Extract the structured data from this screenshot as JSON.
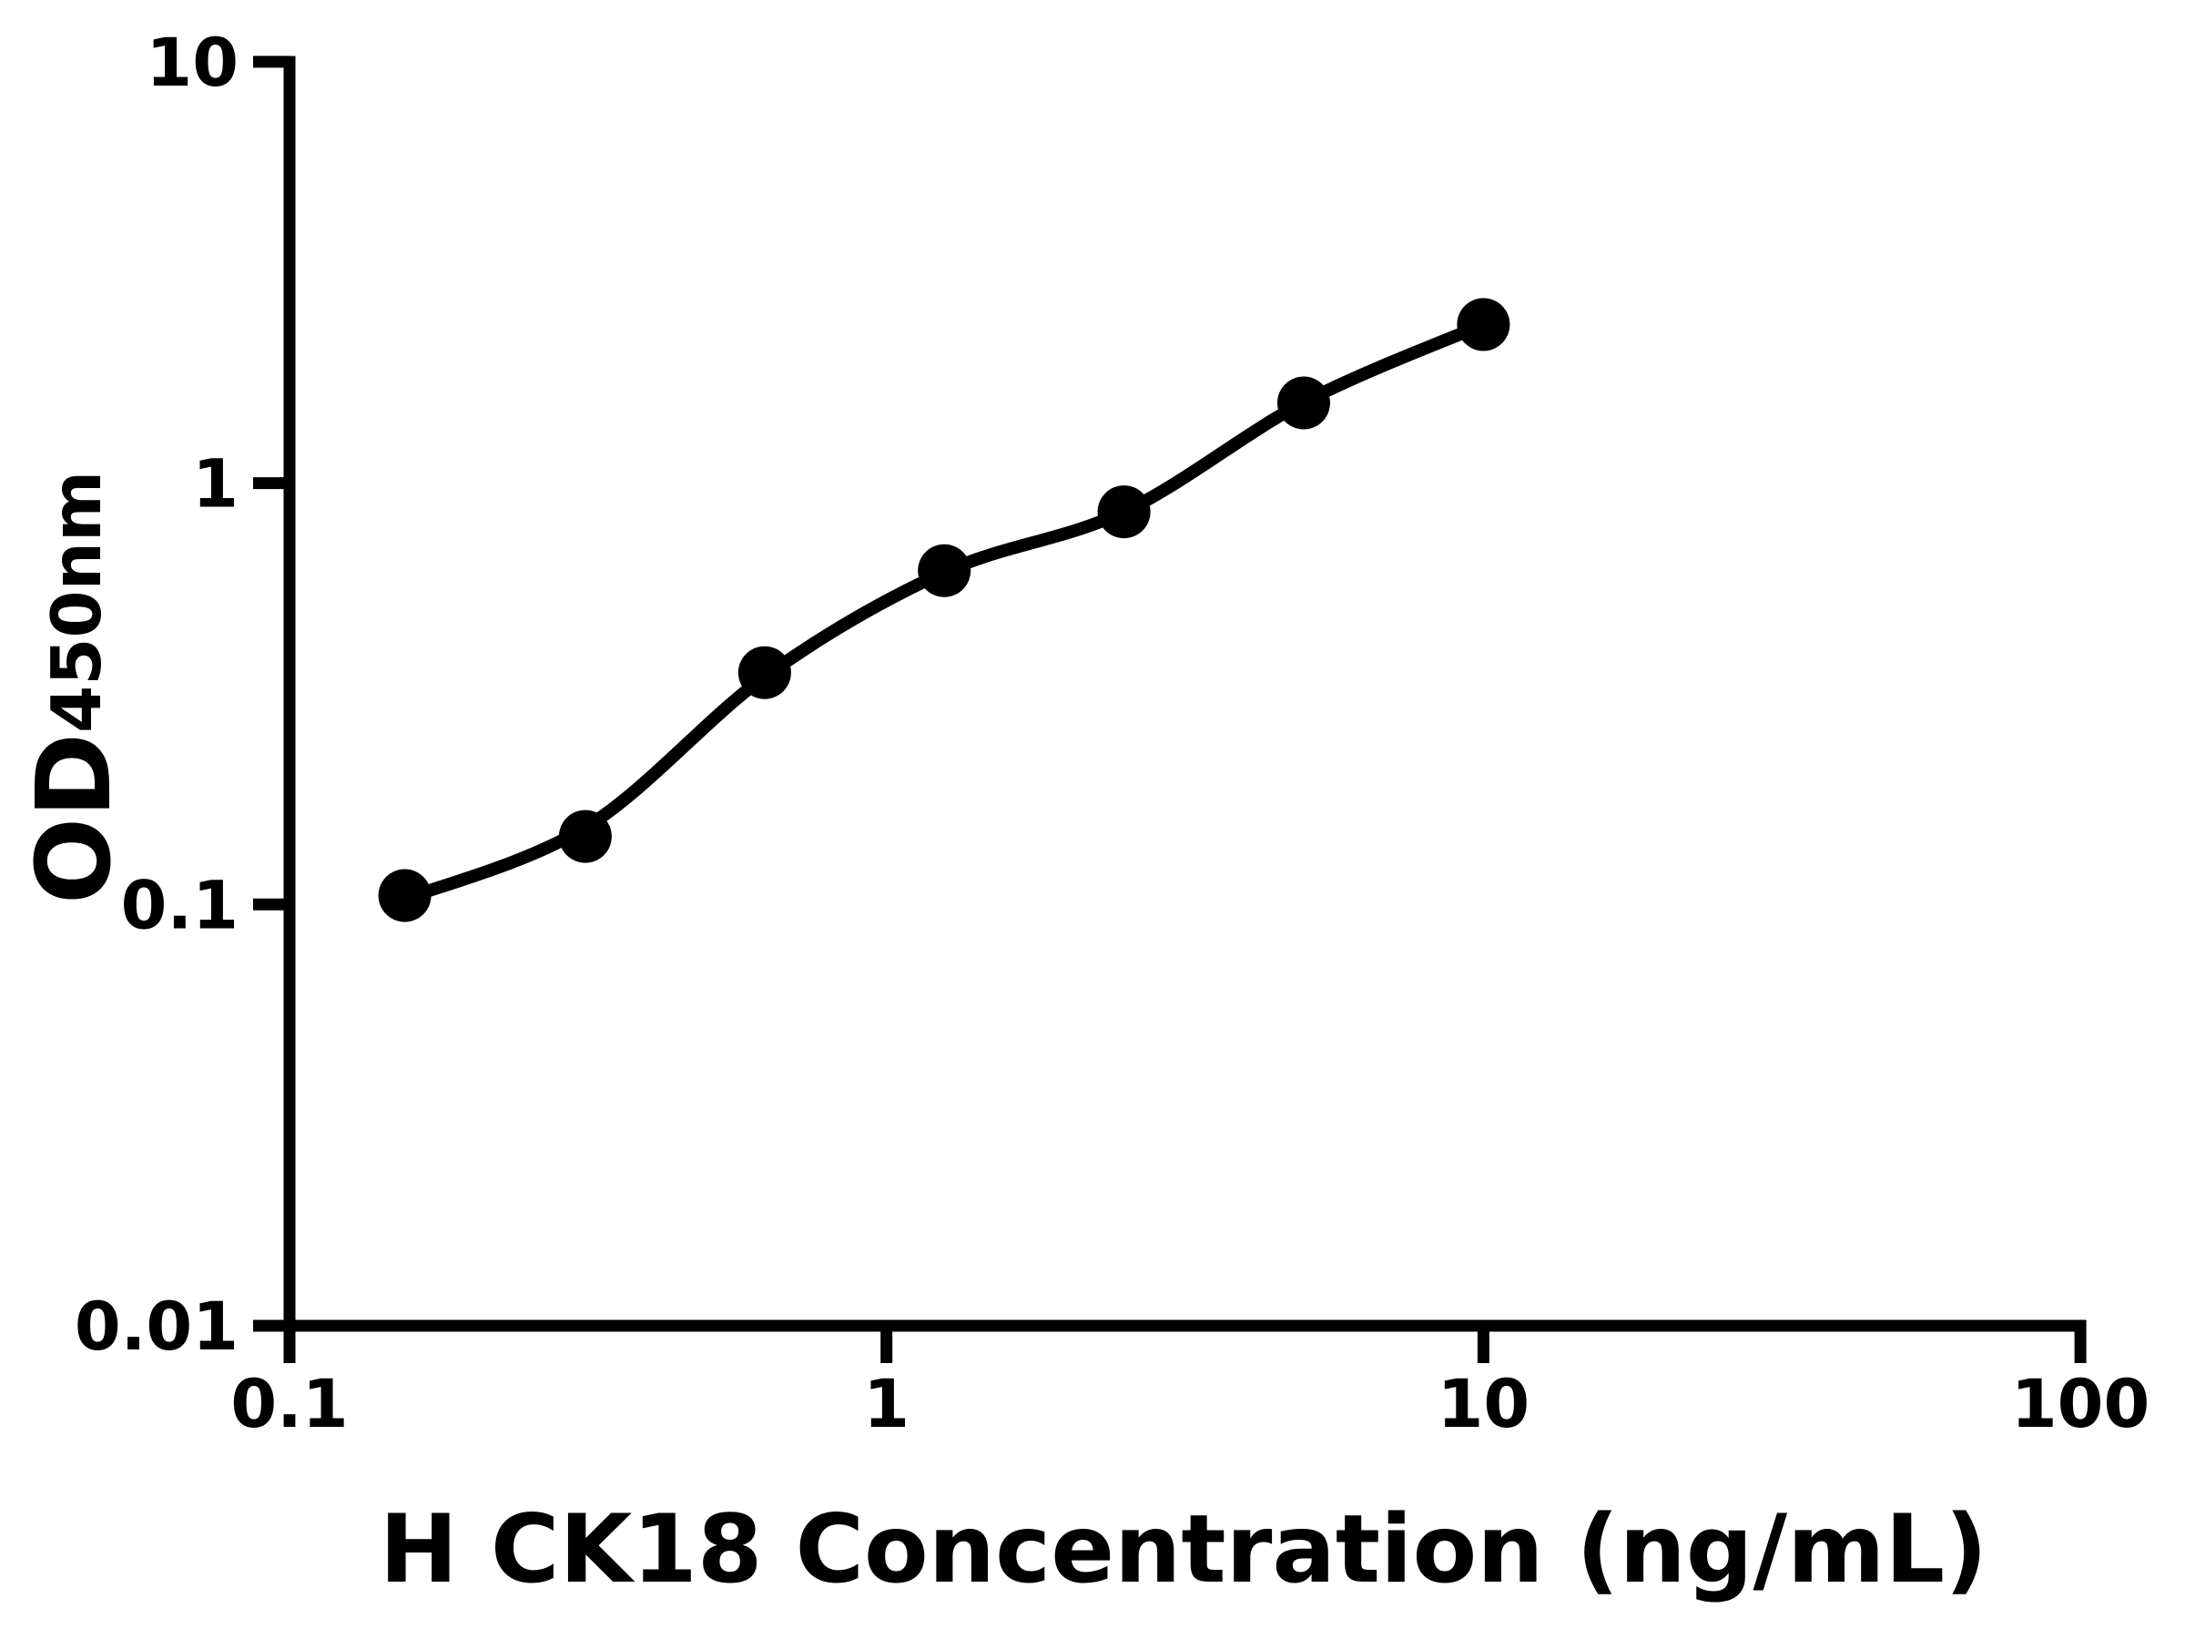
{
  "figure": {
    "background_color": "#ffffff",
    "ink_color": "#000000"
  },
  "chart_data": {
    "type": "scatter",
    "title": "",
    "xlabel": "H CK18 Concentration (ng/mL)",
    "ylabel_main": "OD",
    "ylabel_sub": "450nm",
    "x_scale": "log",
    "y_scale": "log",
    "xlim": [
      0.1,
      100
    ],
    "ylim": [
      0.01,
      10
    ],
    "x_ticks": [
      "0.1",
      "1",
      "10",
      "100"
    ],
    "y_ticks": [
      "10",
      "1",
      "0.1",
      "0.01"
    ],
    "grid": "off",
    "legend": "none",
    "series": [
      {
        "name": "standard-points",
        "marker": "filled-circle",
        "x": [
          0.156,
          0.313,
          0.625,
          1.25,
          2.5,
          5,
          10
        ],
        "y": [
          0.105,
          0.145,
          0.355,
          0.62,
          0.855,
          1.55,
          2.38
        ]
      },
      {
        "name": "fit-curve",
        "marker": "none",
        "x": [
          0.156,
          0.315,
          0.63,
          1.25,
          2.5,
          5,
          10
        ],
        "y": [
          0.103,
          0.153,
          0.35,
          0.615,
          0.855,
          1.555,
          2.38
        ]
      }
    ]
  }
}
